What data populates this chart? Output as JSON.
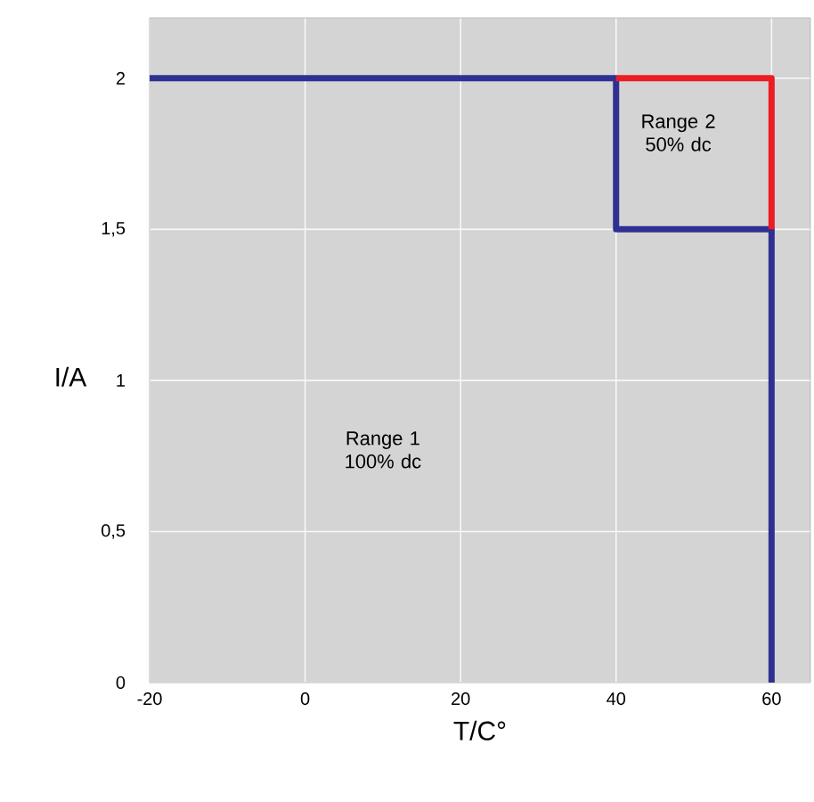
{
  "chart_data": {
    "type": "line",
    "xlabel": "T/C°",
    "ylabel": "I/A",
    "xlim": [
      -20,
      65
    ],
    "ylim": [
      0,
      2.2
    ],
    "xticks": [
      -20,
      0,
      20,
      40,
      60
    ],
    "yticks": [
      0,
      {
        "value": 0.5,
        "label": "0,5"
      },
      1,
      {
        "value": 1.5,
        "label": "1,5"
      },
      2
    ],
    "grid": true,
    "series": [
      {
        "color": "#2e3192",
        "x": [
          -20,
          40,
          40,
          60,
          60
        ],
        "values": [
          2,
          2,
          1.5,
          1.5,
          0
        ]
      },
      {
        "color": "#ed1c24",
        "x": [
          40,
          60,
          60
        ],
        "values": [
          2,
          2,
          1.5
        ]
      }
    ],
    "annotations": [
      "Range 1 100% dc",
      "Range 2 50% dc"
    ]
  }
}
